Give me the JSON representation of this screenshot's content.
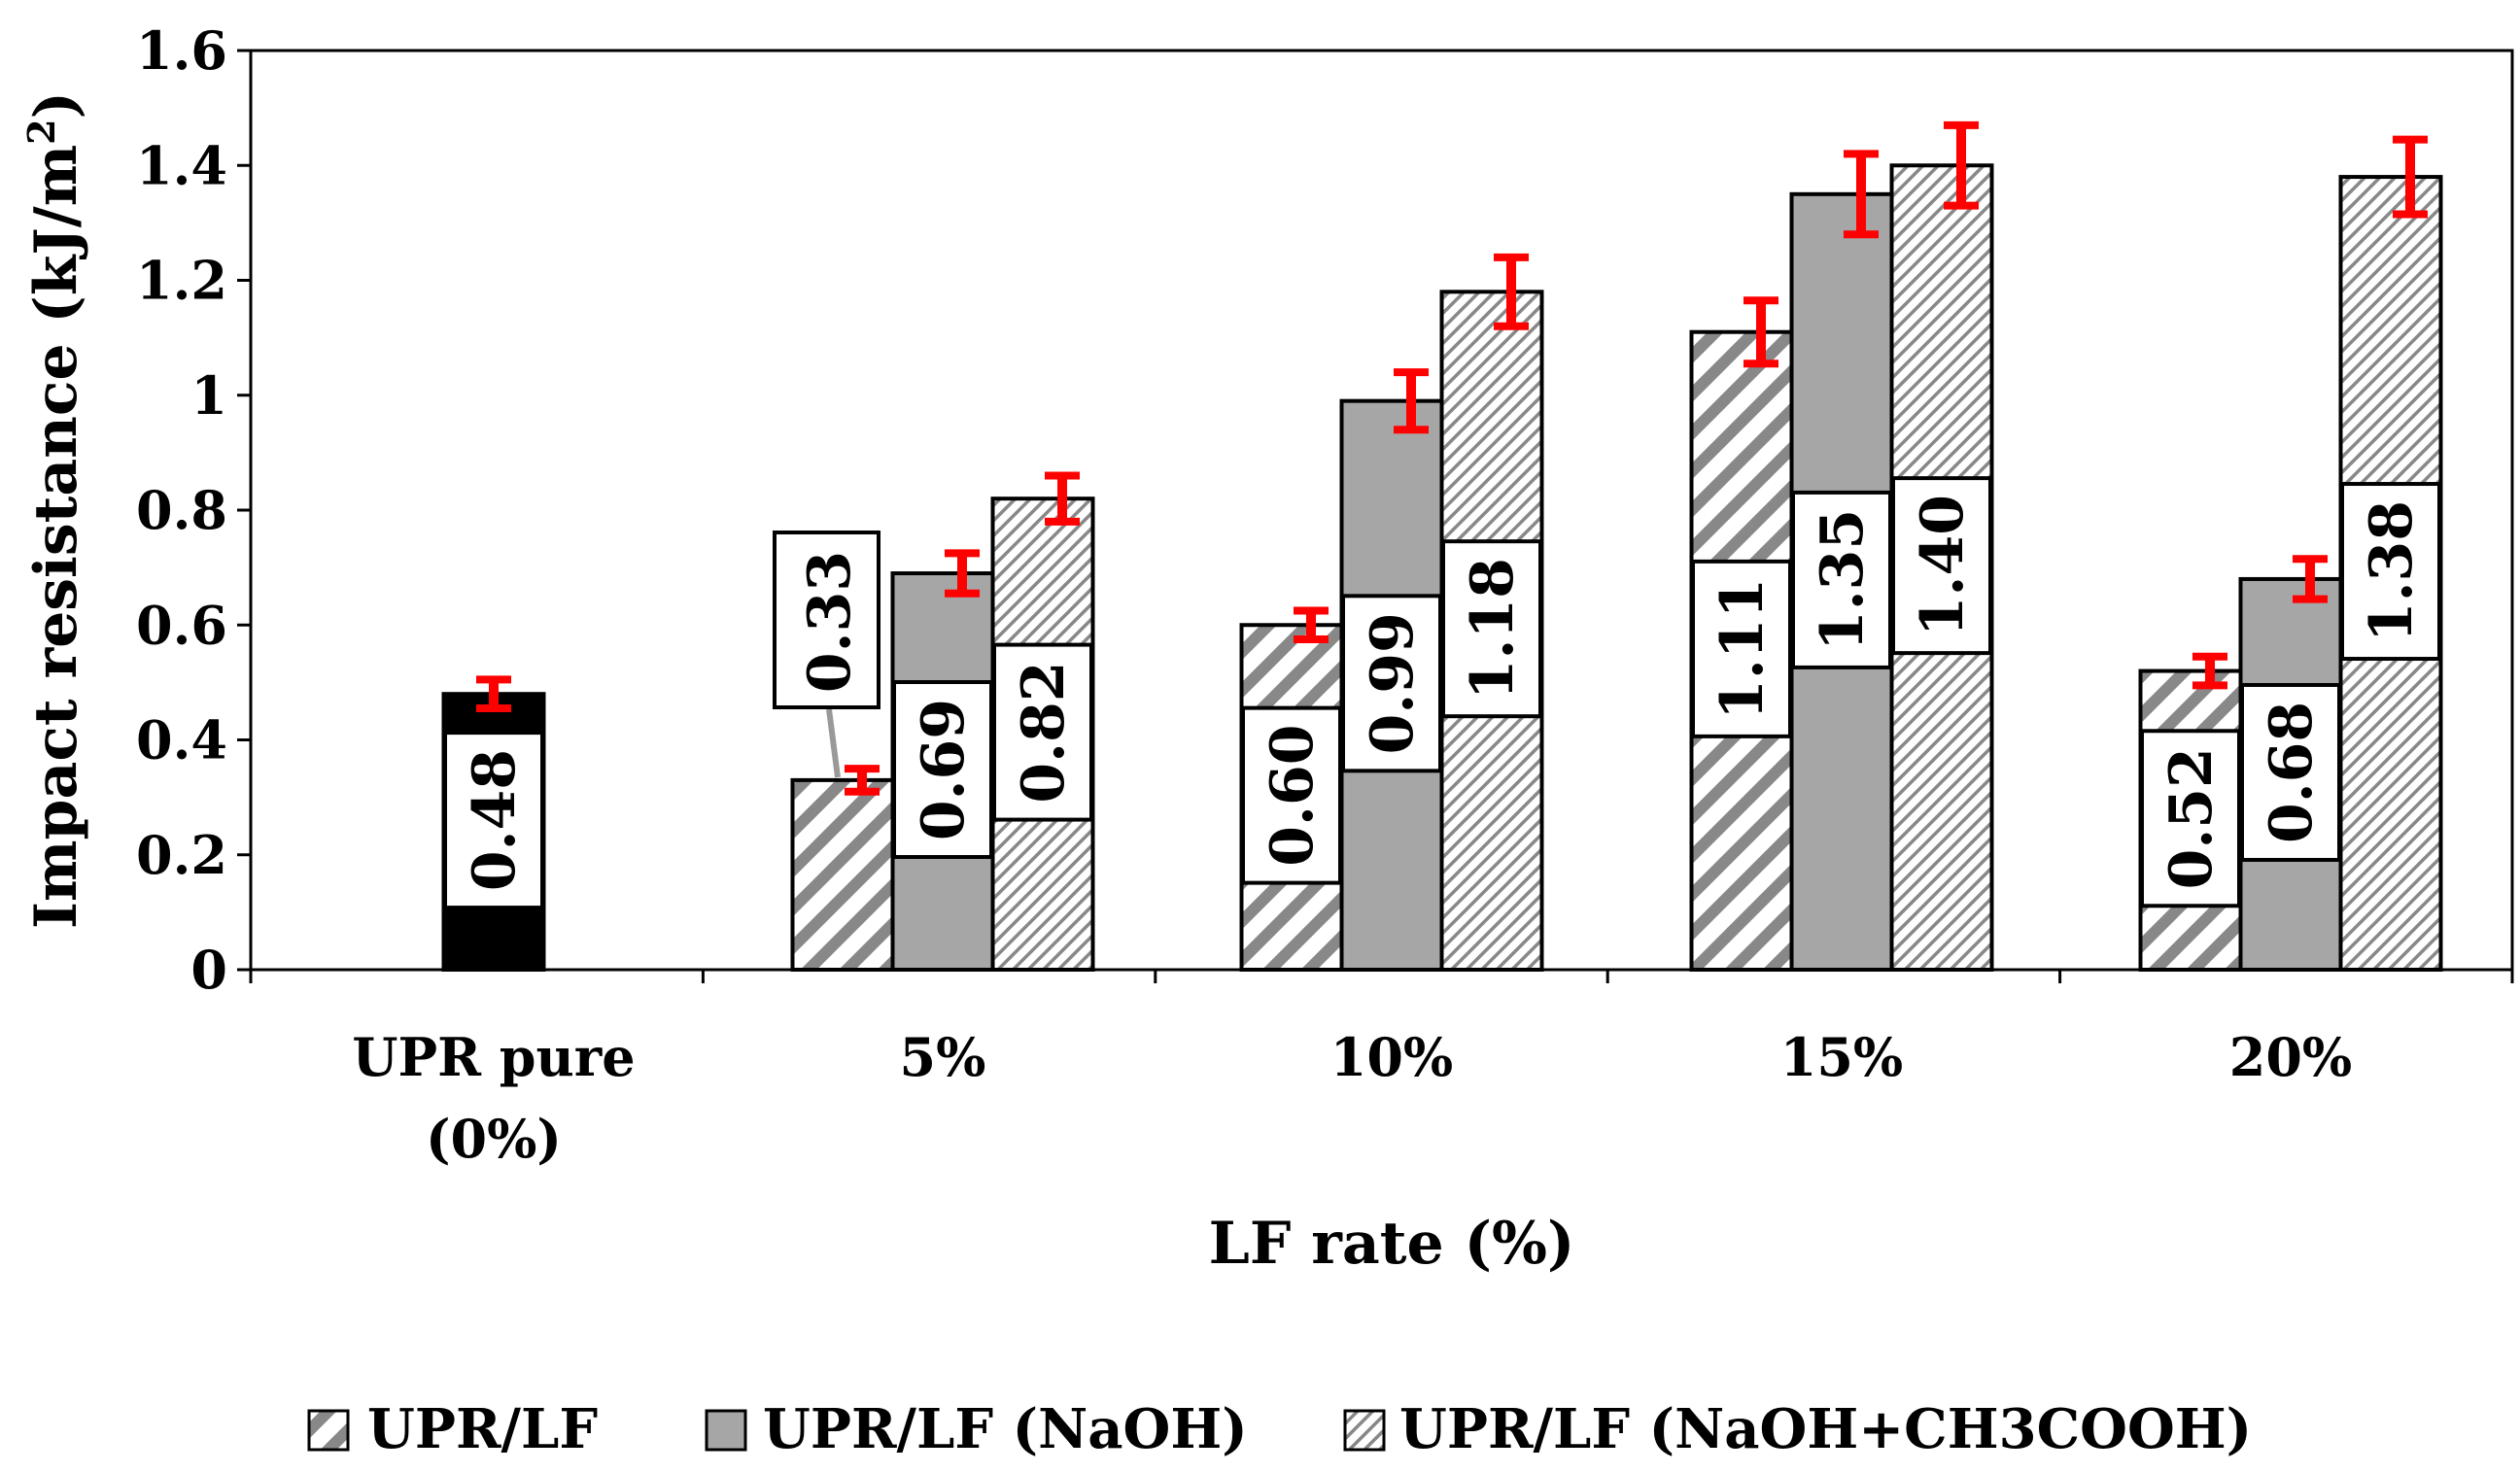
{
  "chart_data": {
    "type": "bar",
    "title": "",
    "xlabel": "LF rate  (%)",
    "ylabel": "Impact resistance (kJ/m²)",
    "ylabel_base": "Impact resistance (kJ/m",
    "ylabel_sup": "2",
    "ylabel_close": ")",
    "ylim": [
      0,
      1.6
    ],
    "yticks": [
      0,
      0.2,
      0.4,
      0.6,
      0.8,
      1,
      1.2,
      1.4,
      1.6
    ],
    "ytick_labels": [
      "0",
      "0.2",
      "0.4",
      "0.6",
      "0.8",
      "1",
      "1.2",
      "1.4",
      "1.6"
    ],
    "categories": [
      {
        "line1": "UPR pure",
        "line2": "(0%)"
      },
      {
        "line1": "5%",
        "line2": ""
      },
      {
        "line1": "10%",
        "line2": ""
      },
      {
        "line1": "15%",
        "line2": ""
      },
      {
        "line1": "20%",
        "line2": ""
      }
    ],
    "pure": {
      "category": 0,
      "value": 0.48,
      "label": "0.48",
      "error": 0.025,
      "color": "#000000"
    },
    "series": [
      {
        "name": "UPR/LF",
        "pattern": "diag-wide",
        "values": [
          null,
          0.33,
          0.6,
          1.11,
          0.52
        ],
        "labels": [
          null,
          "0.33",
          "0.60",
          "1.11",
          "0.52"
        ],
        "errors": [
          null,
          0.02,
          0.025,
          0.055,
          0.025
        ]
      },
      {
        "name": "UPR/LF (NaOH)",
        "pattern": "solid-gray",
        "values": [
          null,
          0.69,
          0.99,
          1.35,
          0.68
        ],
        "labels": [
          null,
          "0.69",
          "0.99",
          "1.35",
          "0.68"
        ],
        "errors": [
          null,
          0.035,
          0.05,
          0.07,
          0.035
        ]
      },
      {
        "name": "UPR/LF (NaOH+CH3COOH)",
        "pattern": "diag-fine",
        "values": [
          null,
          0.82,
          1.18,
          1.4,
          1.38
        ],
        "labels": [
          null,
          "0.82",
          "1.18",
          "1.40",
          "1.38"
        ],
        "errors": [
          null,
          0.04,
          0.06,
          0.07,
          0.065
        ]
      }
    ],
    "legend_position": "bottom",
    "grid": false,
    "colors": {
      "bar_gray": "#a6a6a6",
      "hatch": "#888888",
      "error_bar": "#ff0000",
      "axis": "#000000"
    }
  }
}
